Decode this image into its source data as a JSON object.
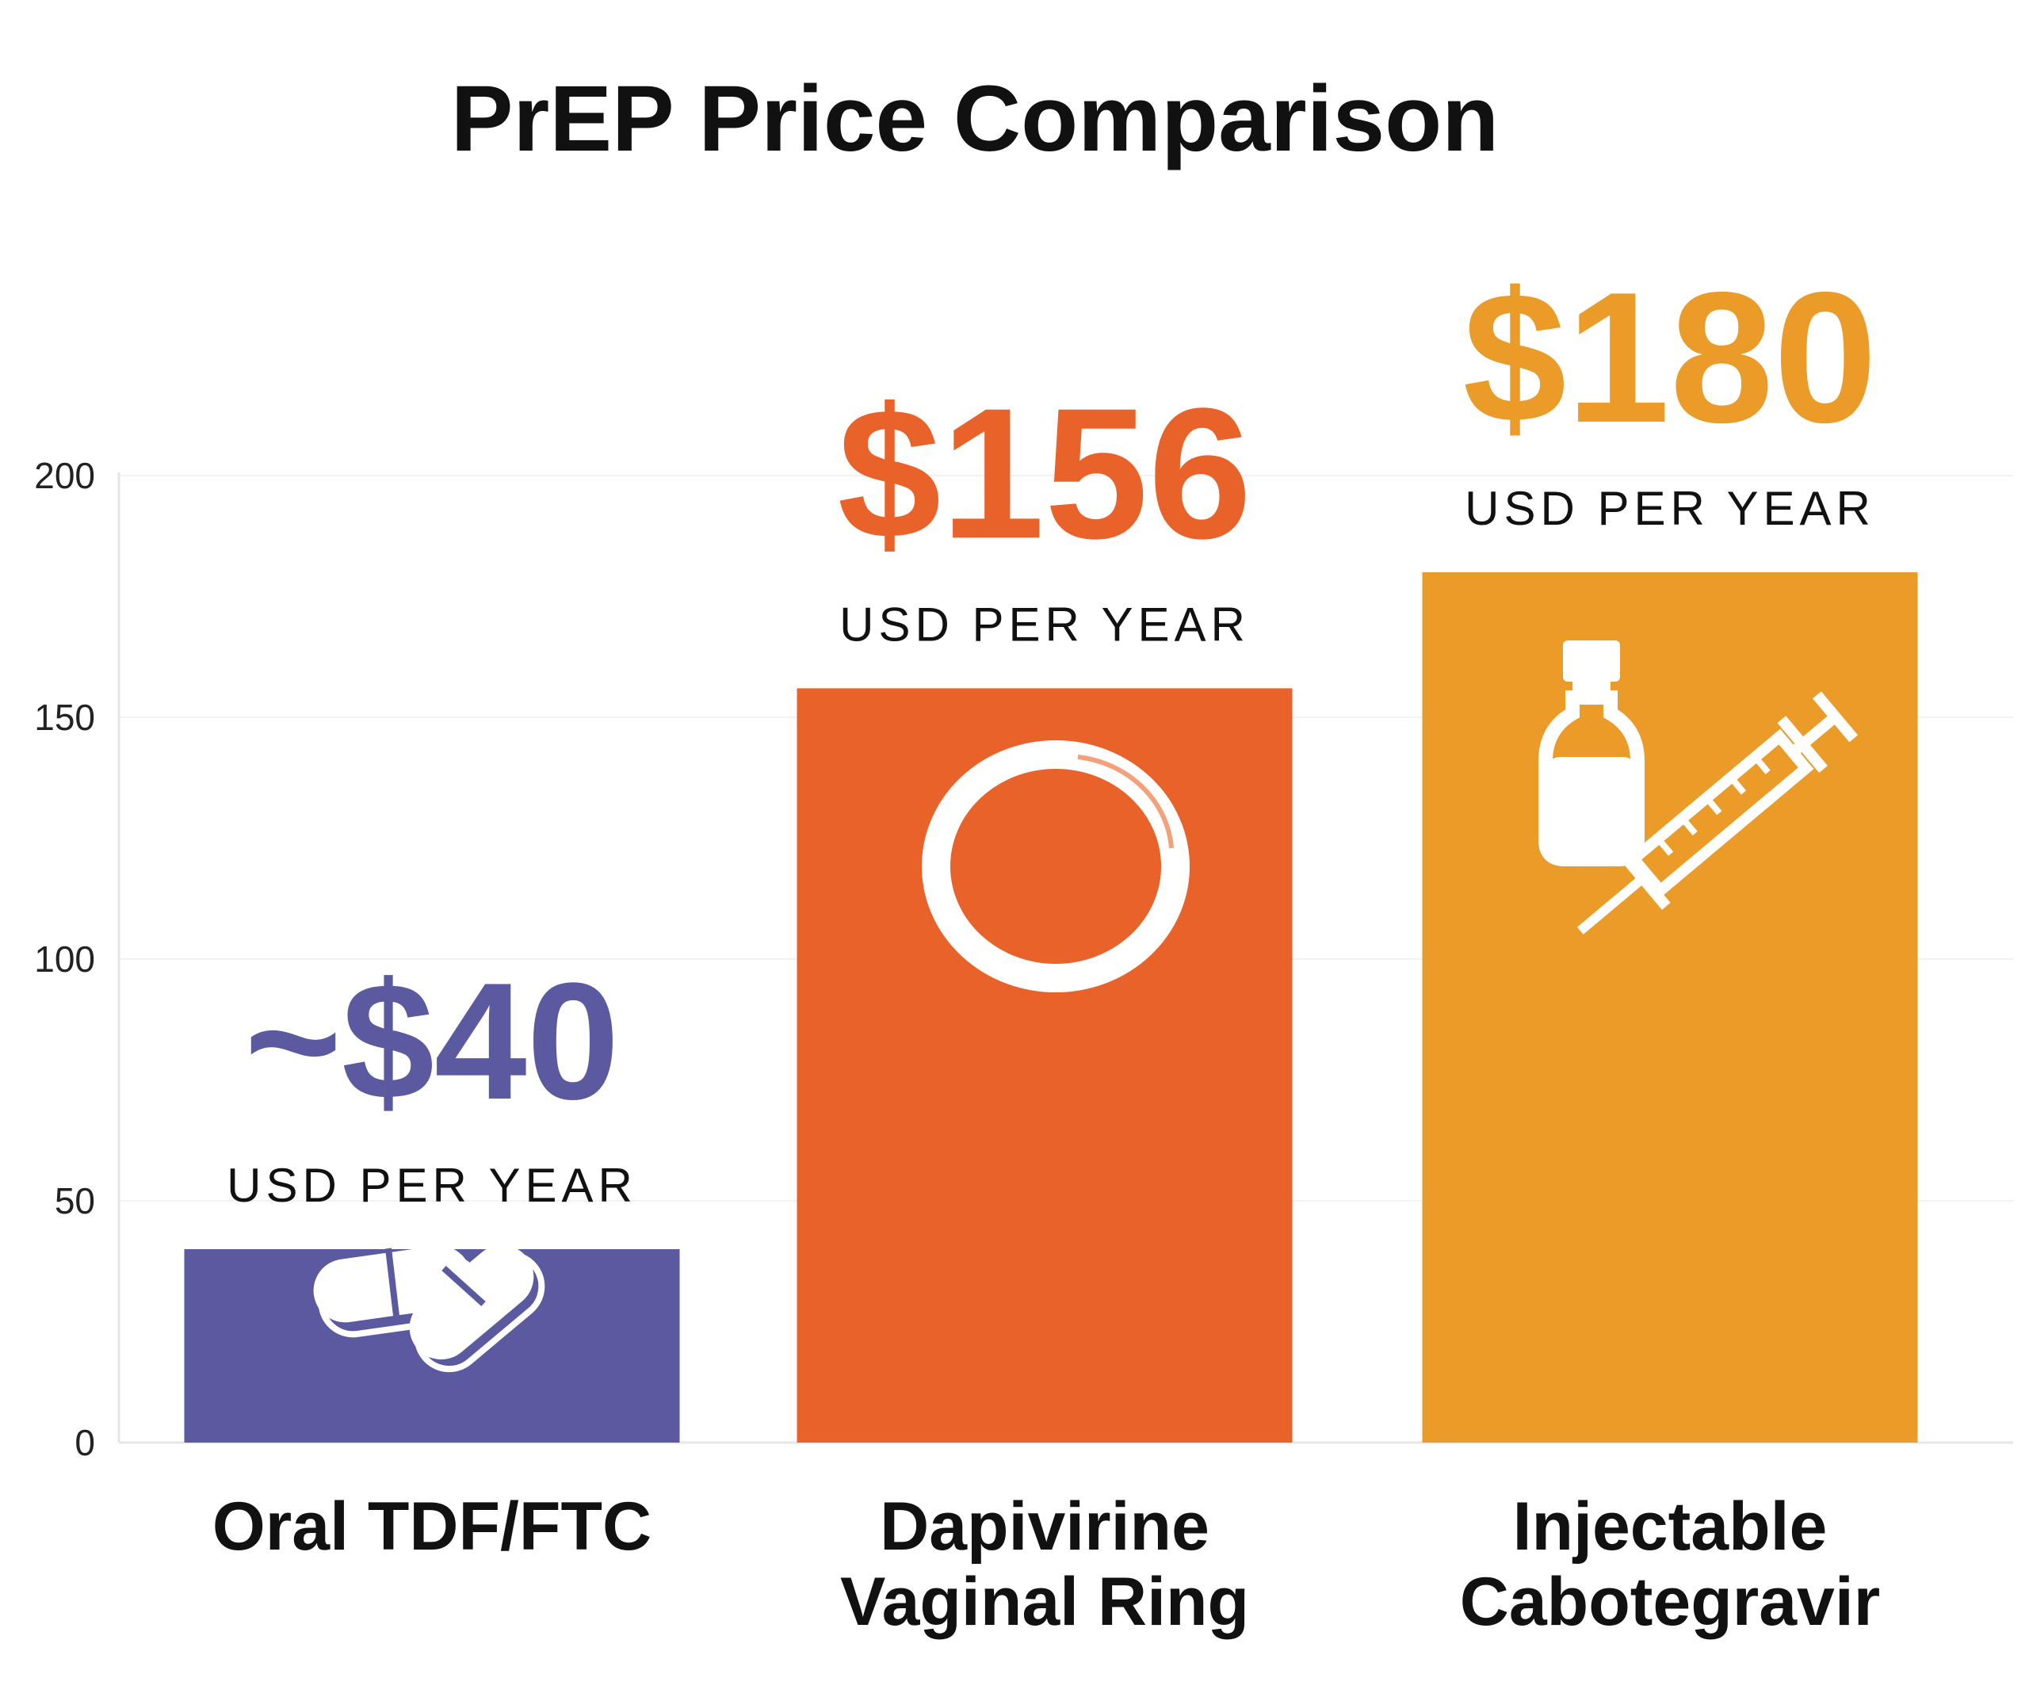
{
  "chart_data": {
    "type": "bar",
    "title": "PrEP Price Comparison",
    "categories": [
      "Oral TDF/FTC",
      "Dapivirine Vaginal Ring",
      "Injectable Cabotegravir"
    ],
    "category_lines": [
      [
        "Oral TDF/FTC"
      ],
      [
        "Dapivirine",
        "Vaginal Ring"
      ],
      [
        "Injectable",
        "Cabotegravir"
      ]
    ],
    "values": [
      40,
      156,
      180
    ],
    "value_labels": [
      "~$40",
      "$156",
      "$180"
    ],
    "unit_label": "USD PER YEAR",
    "ylim": [
      0,
      200
    ],
    "yticks": [
      0,
      50,
      100,
      150,
      200
    ],
    "grid": true,
    "xlabel": "",
    "ylabel": "",
    "colors": [
      "#5b5aa0",
      "#e8622a",
      "#eb9c28"
    ],
    "icons": [
      "pills-icon",
      "vaginal-ring-icon",
      "vial-syringe-icon"
    ]
  }
}
